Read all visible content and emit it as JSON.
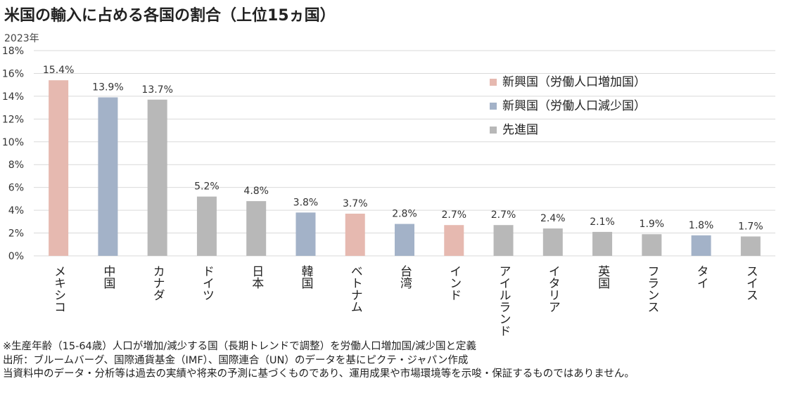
{
  "title": "米国の輸入に占める各国の割合（上位15ヵ国）",
  "subtitle": "2023年",
  "colors": {
    "emerging_growing": "#e6b9b0",
    "emerging_declining": "#a3b2c8",
    "developed": "#b8b8b8",
    "grid": "#d9d9d9"
  },
  "legend": [
    {
      "label": "新興国（労働人口増加国）",
      "group": "emerging_growing"
    },
    {
      "label": "新興国（労働人口減少国）",
      "group": "emerging_declining"
    },
    {
      "label": "先進国",
      "group": "developed"
    }
  ],
  "chart_data": {
    "type": "bar",
    "categories": [
      "メキシコ",
      "中国",
      "カナダ",
      "ドイツ",
      "日本",
      "韓国",
      "ベトナム",
      "台湾",
      "インド",
      "アイルランド",
      "イタリア",
      "英国",
      "フランス",
      "タイ",
      "スイス"
    ],
    "values": [
      15.4,
      13.9,
      13.7,
      5.2,
      4.8,
      3.8,
      3.7,
      2.8,
      2.7,
      2.7,
      2.4,
      2.1,
      1.9,
      1.8,
      1.7
    ],
    "value_labels": [
      "15.4%",
      "13.9%",
      "13.7%",
      "5.2%",
      "4.8%",
      "3.8%",
      "3.7%",
      "2.8%",
      "2.7%",
      "2.7%",
      "2.4%",
      "2.1%",
      "1.9%",
      "1.8%",
      "1.7%"
    ],
    "groups": [
      "emerging_growing",
      "emerging_declining",
      "developed",
      "developed",
      "developed",
      "emerging_declining",
      "emerging_growing",
      "emerging_declining",
      "emerging_growing",
      "developed",
      "developed",
      "developed",
      "developed",
      "emerging_declining",
      "developed"
    ],
    "ylim": [
      0,
      18
    ],
    "yticks": [
      "0%",
      "2%",
      "4%",
      "6%",
      "8%",
      "10%",
      "12%",
      "14%",
      "16%",
      "18%"
    ],
    "grid": true,
    "legend_position": "top-right"
  },
  "notes": [
    "※生産年齢（15-64歳）人口が増加/減少する国（長期トレンドで調整）を労働人口増加国/減少国と定義",
    "出所：ブルームバーグ、国際通貨基金（IMF）、国際連合（UN）のデータを基にピクテ・ジャパン作成",
    "当資料中のデータ・分析等は過去の実績や将来の予測に基づくものであり、運用成果や市場環境等を示唆・保証するものではありません。"
  ]
}
